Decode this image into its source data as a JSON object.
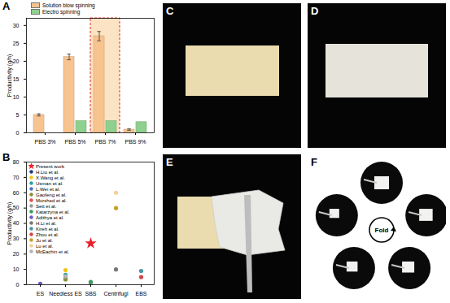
{
  "chart_data": [
    {
      "type": "bar",
      "title": "A",
      "categories": [
        "PBS 3%",
        "PBS 5%",
        "PBS 7%",
        "PBS 9%"
      ],
      "series": [
        {
          "name": "Solution blow spinning",
          "color": "#f7c38f",
          "values": [
            5.0,
            21.2,
            27.0,
            0.9
          ],
          "errors": [
            0.3,
            0.8,
            1.3,
            0.2
          ]
        },
        {
          "name": "Electro spinning",
          "color": "#8ed08e",
          "values": [
            null,
            3.3,
            3.3,
            3.0
          ]
        }
      ],
      "ylabel": "Productivity (g/h)",
      "ylim": [
        0,
        32
      ],
      "yticks": [
        0,
        5,
        10,
        15,
        20,
        25,
        30
      ],
      "legend": "top"
    },
    {
      "type": "scatter",
      "title": "B",
      "categories": [
        "ES",
        "Needless ES",
        "SBS",
        "Centrifugl",
        "EBS"
      ],
      "series": [
        {
          "name": "Present work",
          "color": "#e8202a",
          "marker": "star",
          "values": [
            null,
            null,
            27,
            null,
            null
          ]
        },
        {
          "name": "H.Liu et al.",
          "color": "#233a7a",
          "marker": "circle",
          "values": [
            0.2,
            null,
            null,
            null,
            null
          ]
        },
        {
          "name": "X.Wang et al.",
          "color": "#f2c418",
          "marker": "circle",
          "values": [
            null,
            9.5,
            null,
            null,
            null
          ]
        },
        {
          "name": "Usman et al.",
          "color": "#2f9e9a",
          "marker": "circle",
          "values": [
            null,
            6.5,
            null,
            null,
            null
          ]
        },
        {
          "name": "L.Wei et al.",
          "color": "#4f72c8",
          "marker": "circle",
          "values": [
            null,
            4.5,
            null,
            null,
            null
          ]
        },
        {
          "name": "Gaofeng et al.",
          "color": "#8d8d3c",
          "marker": "circle",
          "values": [
            null,
            3.5,
            null,
            null,
            null
          ]
        },
        {
          "name": "Morshed et al.",
          "color": "#d9534f",
          "marker": "circle",
          "values": [
            null,
            null,
            1.2,
            null,
            null
          ]
        },
        {
          "name": "Sett et al.",
          "color": "#9a9a9a",
          "marker": "circle",
          "values": [
            null,
            null,
            0.6,
            null,
            null
          ]
        },
        {
          "name": "Katarzyna et al.",
          "color": "#3c9a5c",
          "marker": "circle",
          "values": [
            null,
            null,
            1.8,
            null,
            null
          ]
        },
        {
          "name": "Adithya et al.",
          "color": "#6b5bc4",
          "marker": "circle",
          "values": [
            0.6,
            null,
            null,
            null,
            null
          ]
        },
        {
          "name": "H.Li et al.",
          "color": "#777777",
          "marker": "circle",
          "values": [
            null,
            null,
            null,
            10,
            null
          ]
        },
        {
          "name": "Kireh et al.",
          "color": "#4a95a8",
          "marker": "circle",
          "values": [
            null,
            null,
            null,
            null,
            9
          ]
        },
        {
          "name": "Zhou et al.",
          "color": "#d04848",
          "marker": "circle",
          "values": [
            null,
            null,
            null,
            null,
            5
          ]
        },
        {
          "name": "Ju et al.",
          "color": "#c9a12a",
          "marker": "circle",
          "values": [
            null,
            null,
            null,
            50,
            null
          ]
        },
        {
          "name": "Lu et al.",
          "color": "#f6cf98",
          "marker": "circle",
          "values": [
            null,
            null,
            null,
            60,
            null
          ]
        },
        {
          "name": "McEachin et al.",
          "color": "#b5b5b5",
          "marker": "circle",
          "values": [
            null,
            5.5,
            null,
            null,
            null
          ]
        }
      ],
      "ylabel": "Productivity (g/h)",
      "ylim": [
        0,
        80
      ],
      "yticks": [
        0,
        10,
        20,
        30,
        40,
        50,
        60,
        70,
        80
      ],
      "legend": "top-left"
    }
  ],
  "photos": [
    {
      "label": "C"
    },
    {
      "label": "D"
    },
    {
      "label": "E"
    },
    {
      "label": "F",
      "text": "Fold"
    }
  ]
}
